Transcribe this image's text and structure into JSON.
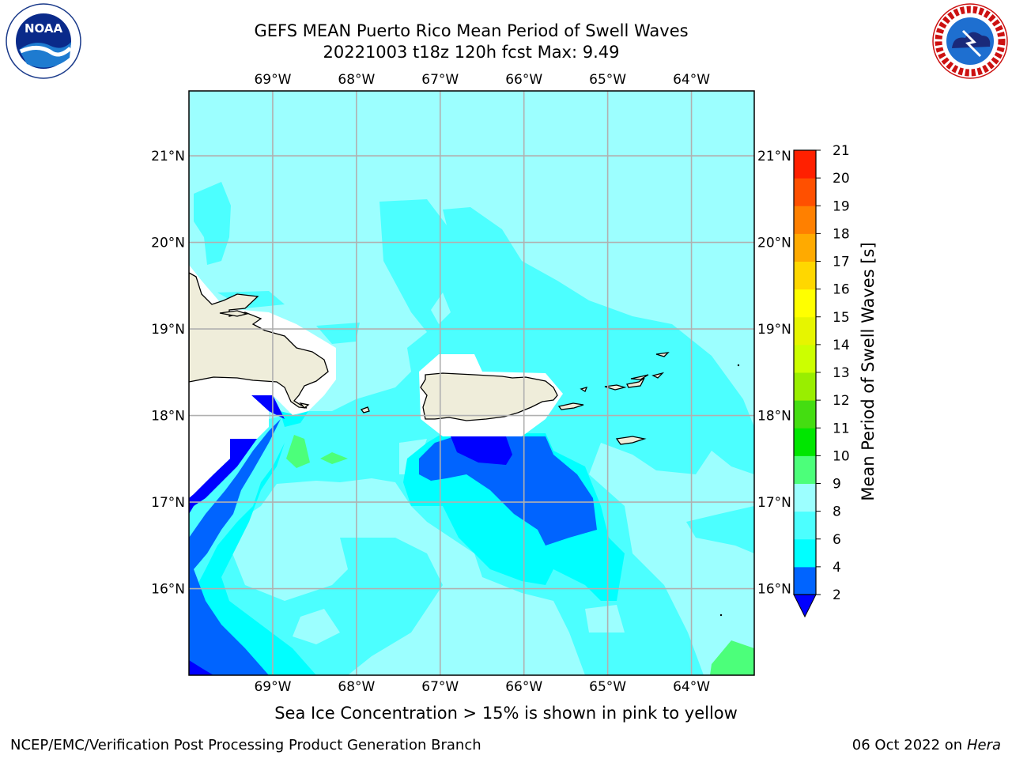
{
  "header": {
    "title_line1": "GEFS MEAN Puerto Rico Mean Period of Swell Waves",
    "title_line2": "20221003 t18z 120h fcst   Max: 9.49"
  },
  "logos": {
    "left": {
      "text": "NOAA",
      "icon": "noaa-logo-icon"
    },
    "right": {
      "text": "NATIONAL WEATHER SERVICE",
      "icon": "nws-logo-icon"
    }
  },
  "map": {
    "lon_range": [
      -70,
      -63.25
    ],
    "lat_range": [
      15.0,
      21.75
    ],
    "lon_ticks": [
      {
        "value": -69,
        "label": "69°W"
      },
      {
        "value": -68,
        "label": "68°W"
      },
      {
        "value": -67,
        "label": "67°W"
      },
      {
        "value": -66,
        "label": "66°W"
      },
      {
        "value": -65,
        "label": "65°W"
      },
      {
        "value": -64,
        "label": "64°W"
      }
    ],
    "lat_ticks": [
      {
        "value": 21,
        "label": "21°N"
      },
      {
        "value": 20,
        "label": "20°N"
      },
      {
        "value": 19,
        "label": "19°N"
      },
      {
        "value": 18,
        "label": "18°N"
      },
      {
        "value": 17,
        "label": "17°N"
      },
      {
        "value": 16,
        "label": "16°N"
      }
    ],
    "grid": true,
    "colors": {
      "ocean_base": "#9cffff",
      "land": "#efedda",
      "grid": "#b0b0b0"
    }
  },
  "colorbar": {
    "label": "Mean Period of Swell Waves [s]",
    "ticks": [
      "2",
      "4",
      "6",
      "8",
      "9",
      "10",
      "11",
      "12",
      "13",
      "14",
      "15",
      "16",
      "17",
      "18",
      "19",
      "20",
      "21"
    ],
    "colors": [
      "#0064ff",
      "#00ffff",
      "#4cffff",
      "#9cffff",
      "#4cff7a",
      "#00e600",
      "#44dd11",
      "#99ee00",
      "#ccff00",
      "#e6f500",
      "#ffff00",
      "#ffd700",
      "#ffaa00",
      "#ff8000",
      "#ff5000",
      "#ff2000"
    ],
    "under_color": "#0000ff"
  },
  "footnote": "Sea Ice Concentration > 15% is shown in pink to yellow",
  "footer": {
    "left": "NCEP/EMC/Verification Post Processing Product Generation Branch",
    "right_date": "06 Oct 2022 on",
    "right_host": "Hera"
  }
}
